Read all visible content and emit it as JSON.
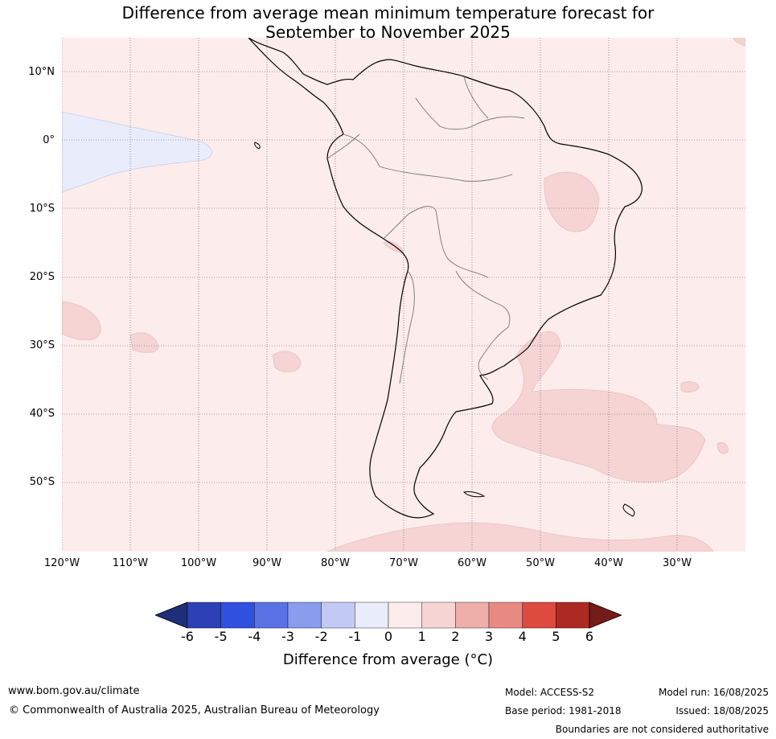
{
  "title_line1": "Difference from average mean minimum temperature forecast for",
  "title_line2": "September to November 2025",
  "lat_labels": [
    "10°N",
    "0°",
    "10°S",
    "20°S",
    "30°S",
    "40°S",
    "50°S"
  ],
  "lon_labels": [
    "120°W",
    "110°W",
    "100°W",
    "90°W",
    "80°W",
    "70°W",
    "60°W",
    "50°W",
    "40°W",
    "30°W"
  ],
  "colorbar": {
    "ticks": [
      "-6",
      "-5",
      "-4",
      "-3",
      "-2",
      "-1",
      "0",
      "1",
      "2",
      "3",
      "4",
      "5",
      "6"
    ],
    "colors": [
      "#1e2e7a",
      "#2b41b5",
      "#3050e0",
      "#5a72e5",
      "#8a9ced",
      "#c3c9f5",
      "#e9ecfb",
      "#fceceb",
      "#f5d4d3",
      "#eeaea9",
      "#e98a82",
      "#dc4b3e",
      "#ad2a22",
      "#731c19"
    ],
    "label": "Difference from average (°C)"
  },
  "footer": {
    "website": "www.bom.gov.au/climate",
    "copyright": "© Commonwealth of Australia 2025, Australian Bureau of Meteorology",
    "model": "Model: ACCESS-S2",
    "base_period": "Base period: 1981-2018",
    "model_run": "Model run: 16/08/2025",
    "issued": "Issued: 18/08/2025",
    "disclaimer": "Boundaries are not considered authoritative"
  }
}
